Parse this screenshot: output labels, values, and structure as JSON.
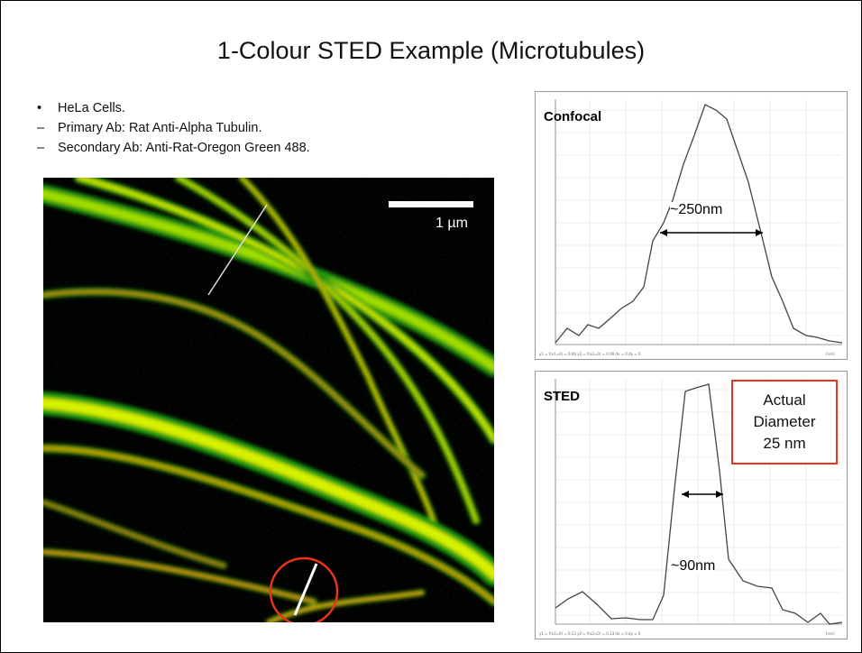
{
  "slide": {
    "title": "1-Colour STED Example (Microtubules)",
    "bullets": [
      {
        "marker": "•",
        "text": "HeLa Cells."
      },
      {
        "marker": "–",
        "text": "Primary Ab: Rat Anti-Alpha Tubulin."
      },
      {
        "marker": "–",
        "text": "Secondary Ab: Anti-Rat-Oregon Green 488."
      }
    ]
  },
  "image": {
    "scale_bar_label": "1 µm"
  },
  "plots": {
    "confocal": {
      "label": "Confocal",
      "width_label": "~250nm"
    },
    "sted": {
      "label": "STED",
      "width_label": "~90nm"
    }
  },
  "annotation": {
    "line1": "Actual",
    "line2": "Diameter",
    "line3": "25 nm",
    "border_color": "#e8341c"
  },
  "colors": {
    "highlight_circle": "#e8341c",
    "profile_line": "#444444"
  }
}
